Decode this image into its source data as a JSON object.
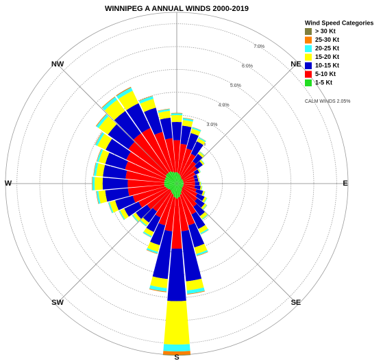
{
  "chart_data": {
    "type": "windrose",
    "title": "WINNIPEG A  ANNUAL WINDS 2000-2019",
    "legend_title": "Wind Speed Categories",
    "annotation": "CALM WINDS 2.05%",
    "x": [
      0,
      10,
      20,
      30,
      40,
      50,
      60,
      70,
      80,
      90,
      100,
      110,
      120,
      130,
      140,
      150,
      160,
      170,
      180,
      190,
      200,
      210,
      220,
      230,
      240,
      250,
      260,
      270,
      280,
      290,
      300,
      310,
      320,
      330,
      340,
      350
    ],
    "directions": [
      {
        "value": 45,
        "label": "NE"
      },
      {
        "value": 90,
        "label": "E"
      },
      {
        "value": 135,
        "label": "SE"
      },
      {
        "value": 180,
        "label": "S"
      },
      {
        "value": 225,
        "label": "SW"
      },
      {
        "value": 270,
        "label": "W"
      },
      {
        "value": 315,
        "label": "NW"
      }
    ],
    "rlim": [
      0,
      7.5
    ],
    "rticks": [
      {
        "value": 1,
        "label": "1.0%"
      },
      {
        "value": 2,
        "label": "2.0%"
      },
      {
        "value": 3,
        "label": "3.0%"
      },
      {
        "value": 4,
        "label": "4.0%"
      },
      {
        "value": 5,
        "label": "5.0%"
      },
      {
        "value": 6,
        "label": "6.0%"
      },
      {
        "value": 7,
        "label": "7.0%"
      }
    ],
    "grid": true,
    "series": [
      {
        "name": "> 30 Kt",
        "color": "#7f7f3f",
        "values": [
          0,
          0,
          0,
          0,
          0,
          0,
          0,
          0,
          0,
          0,
          0,
          0,
          0,
          0,
          0,
          0,
          0,
          0,
          0.03,
          0,
          0,
          0,
          0,
          0,
          0,
          0,
          0,
          0,
          0,
          0,
          0,
          0,
          0,
          0.01,
          0,
          0
        ]
      },
      {
        "name": "25-30 Kt",
        "color": "#ff8000",
        "values": [
          0.02,
          0.02,
          0.01,
          0.01,
          0.01,
          0,
          0,
          0,
          0,
          0,
          0,
          0,
          0,
          0.01,
          0.01,
          0.01,
          0.02,
          0.03,
          0.15,
          0.03,
          0.02,
          0.01,
          0.01,
          0.01,
          0.01,
          0.01,
          0.02,
          0.02,
          0.02,
          0.02,
          0.02,
          0.03,
          0.03,
          0.03,
          0.02,
          0.02
        ]
      },
      {
        "name": "20-25 Kt",
        "color": "#33ffff",
        "values": [
          0.08,
          0.08,
          0.06,
          0.05,
          0.03,
          0.02,
          0.02,
          0.01,
          0.01,
          0.02,
          0.02,
          0.02,
          0.03,
          0.03,
          0.04,
          0.06,
          0.08,
          0.15,
          0.3,
          0.15,
          0.08,
          0.06,
          0.05,
          0.05,
          0.05,
          0.06,
          0.08,
          0.1,
          0.1,
          0.08,
          0.1,
          0.12,
          0.15,
          0.15,
          0.12,
          0.08
        ]
      },
      {
        "name": "15-20 Kt",
        "color": "#ffff00",
        "values": [
          0.3,
          0.25,
          0.2,
          0.15,
          0.1,
          0.08,
          0.05,
          0.04,
          0.04,
          0.05,
          0.06,
          0.08,
          0.1,
          0.1,
          0.15,
          0.2,
          0.3,
          0.4,
          1.9,
          0.4,
          0.3,
          0.2,
          0.15,
          0.15,
          0.2,
          0.25,
          0.3,
          0.35,
          0.3,
          0.3,
          0.4,
          0.5,
          0.6,
          0.6,
          0.4,
          0.3
        ]
      },
      {
        "name": "10-15 Kt",
        "color": "#0000cc",
        "values": [
          0.8,
          0.8,
          0.7,
          0.6,
          0.4,
          0.3,
          0.2,
          0.15,
          0.15,
          0.2,
          0.25,
          0.3,
          0.35,
          0.4,
          0.5,
          0.7,
          1.0,
          2.2,
          2.3,
          2.1,
          0.9,
          0.7,
          0.6,
          0.6,
          0.7,
          0.8,
          1.0,
          1.1,
          1.0,
          0.9,
          1.0,
          1.1,
          1.2,
          1.2,
          1.1,
          0.9
        ]
      },
      {
        "name": "5-10 Kt",
        "color": "#ff0000",
        "values": [
          1.4,
          1.3,
          1.2,
          1.1,
          0.9,
          0.8,
          0.6,
          0.5,
          0.5,
          0.5,
          0.5,
          0.6,
          0.7,
          0.8,
          0.9,
          1.1,
          1.4,
          1.5,
          2.2,
          1.5,
          1.4,
          1.2,
          1.1,
          1.2,
          1.4,
          1.5,
          1.6,
          1.6,
          1.7,
          1.8,
          1.9,
          2.0,
          2.1,
          2.1,
          1.8,
          1.5
        ]
      },
      {
        "name": "1-5 Kt",
        "color": "#22dd22",
        "values": [
          0.5,
          0.45,
          0.4,
          0.35,
          0.3,
          0.3,
          0.3,
          0.3,
          0.3,
          0.3,
          0.3,
          0.3,
          0.3,
          0.3,
          0.35,
          0.4,
          0.5,
          0.6,
          0.65,
          0.6,
          0.5,
          0.45,
          0.4,
          0.4,
          0.45,
          0.5,
          0.55,
          0.55,
          0.55,
          0.55,
          0.55,
          0.6,
          0.6,
          0.6,
          0.55,
          0.5
        ]
      }
    ]
  }
}
